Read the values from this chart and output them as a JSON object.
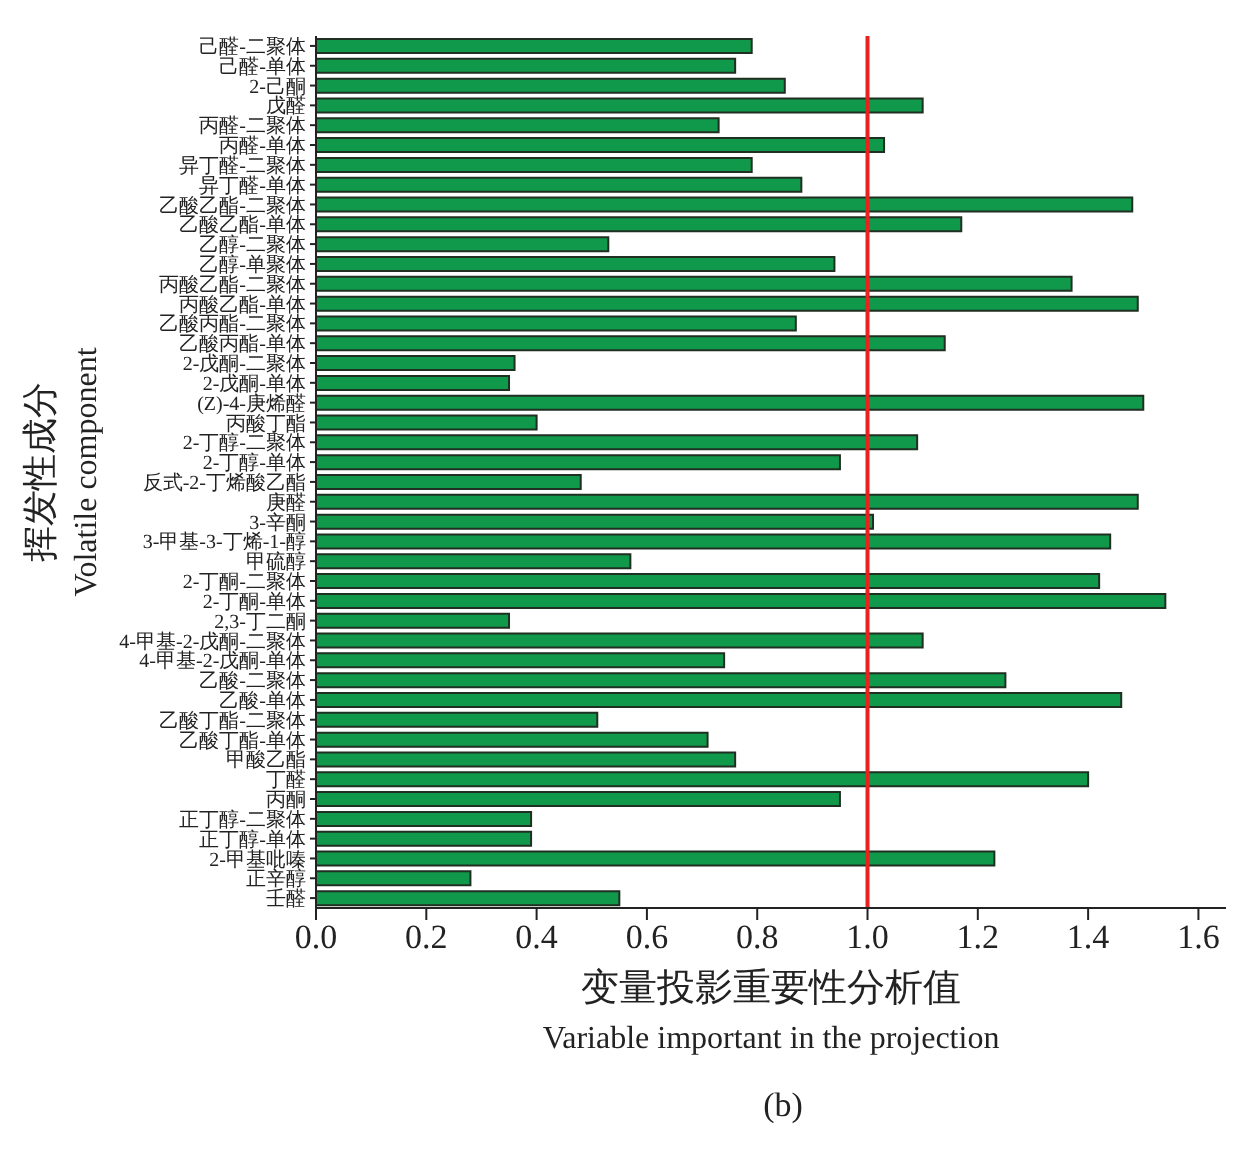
{
  "chart_data": {
    "type": "bar",
    "orientation": "horizontal",
    "xlabel": "变量投影重要性分析值\nVariable important in the projection",
    "ylabel": "挥发性成分\nVolatile component",
    "annotations": [
      "(b)"
    ],
    "categories": [
      "己醛-二聚体",
      "己醛-单体",
      "2-己酮",
      "戊醛",
      "丙醛-二聚体",
      "丙醛-单体",
      "异丁醛-二聚体",
      "异丁醛-单体",
      "乙酸乙酯-二聚体",
      "乙酸乙酯-单体",
      "乙醇-二聚体",
      "乙醇-单聚体",
      "丙酸乙酯-二聚体",
      "丙酸乙酯-单体",
      "乙酸丙酯-二聚体",
      "乙酸丙酯-单体",
      "2-戊酮-二聚体",
      "2-戊酮-单体",
      "(Z)-4-庚烯醛",
      "丙酸丁酯",
      "2-丁醇-二聚体",
      "2-丁醇-单体",
      "反式-2-丁烯酸乙酯",
      "庚醛",
      "3-辛酮",
      "3-甲基-3-丁烯-1-醇",
      "甲硫醇",
      "2-丁酮-二聚体",
      "2-丁酮-单体",
      "2,3-丁二酮",
      "4-甲基-2-戊酮-二聚体",
      "4-甲基-2-戊酮-单体",
      "乙酸-二聚体",
      "乙酸-单体",
      "乙酸丁酯-二聚体",
      "乙酸丁酯-单体",
      "甲酸乙酯",
      "丁醛",
      "丙酮",
      "正丁醇-二聚体",
      "正丁醇-单体",
      "2-甲基吡嗪",
      "正辛醇",
      "壬醛"
    ],
    "values": [
      0.79,
      0.76,
      0.85,
      1.1,
      0.73,
      1.03,
      0.79,
      0.88,
      1.48,
      1.17,
      0.53,
      0.94,
      1.37,
      1.49,
      0.87,
      1.14,
      0.36,
      0.35,
      1.5,
      0.4,
      1.09,
      0.95,
      0.48,
      1.49,
      1.01,
      1.44,
      0.57,
      1.42,
      1.54,
      0.35,
      1.1,
      0.74,
      1.25,
      1.46,
      0.51,
      0.71,
      0.76,
      1.4,
      0.95,
      0.39,
      0.39,
      1.23,
      0.28,
      0.55
    ],
    "color": "#10994a",
    "xlim": [
      0,
      1.65
    ],
    "xticks": [
      {
        "value": 0,
        "label": "0.0"
      },
      {
        "value": 0.2,
        "label": "0.2"
      },
      {
        "value": 0.4,
        "label": "0.4"
      },
      {
        "value": 0.6,
        "label": "0.6"
      },
      {
        "value": 0.8,
        "label": "0.8"
      },
      {
        "value": 1,
        "label": "1.0"
      },
      {
        "value": 1.2,
        "label": "1.2"
      },
      {
        "value": 1.4,
        "label": "1.4"
      },
      {
        "value": 1.6,
        "label": "1.6"
      }
    ],
    "ref_lines": [
      {
        "axis": "x",
        "value": 1,
        "color": "#e8231f"
      }
    ],
    "grid": false,
    "legend": false
  }
}
